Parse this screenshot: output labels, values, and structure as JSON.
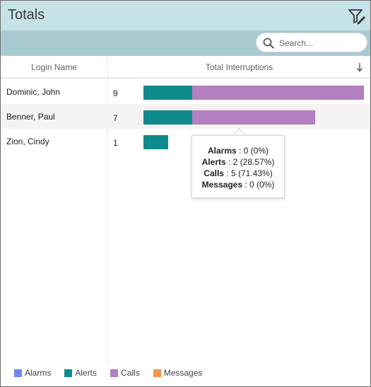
{
  "header": {
    "title": "Totals",
    "filter_icon": "filter-edit-icon"
  },
  "search": {
    "placeholder": "Search...",
    "value": ""
  },
  "table": {
    "columns": [
      "Login Name",
      "Total Interruptions"
    ],
    "sort_icon": "arrow-down-icon",
    "rows": [
      {
        "name": "Dominic, John",
        "total": "9",
        "alarms": 0,
        "alerts": 2,
        "calls": 7,
        "messages": 0
      },
      {
        "name": "Benner, Paul",
        "total": "7",
        "alarms": 0,
        "alerts": 2,
        "calls": 5,
        "messages": 0
      },
      {
        "name": "Zion, Cindy",
        "total": "1",
        "alarms": 0,
        "alerts": 1,
        "calls": 0,
        "messages": 0
      }
    ]
  },
  "tooltip": {
    "lines": [
      {
        "label": "Alarms",
        "value": " : 0 (0%)"
      },
      {
        "label": "Alerts",
        "value": " : 2 (28.57%)"
      },
      {
        "label": "Calls",
        "value": " : 5 (71.43%)"
      },
      {
        "label": "Messages",
        "value": " : 0 (0%)"
      }
    ]
  },
  "legend": [
    {
      "label": "Alarms",
      "color": "#6f86f5"
    },
    {
      "label": "Alerts",
      "color": "#0e8a8c"
    },
    {
      "label": "Calls",
      "color": "#b37fbf"
    },
    {
      "label": "Messages",
      "color": "#f6954e"
    }
  ],
  "colors": {
    "alarms": "#6f86f5",
    "alerts": "#0e8a8c",
    "calls": "#b37fbf",
    "messages": "#f6954e"
  }
}
